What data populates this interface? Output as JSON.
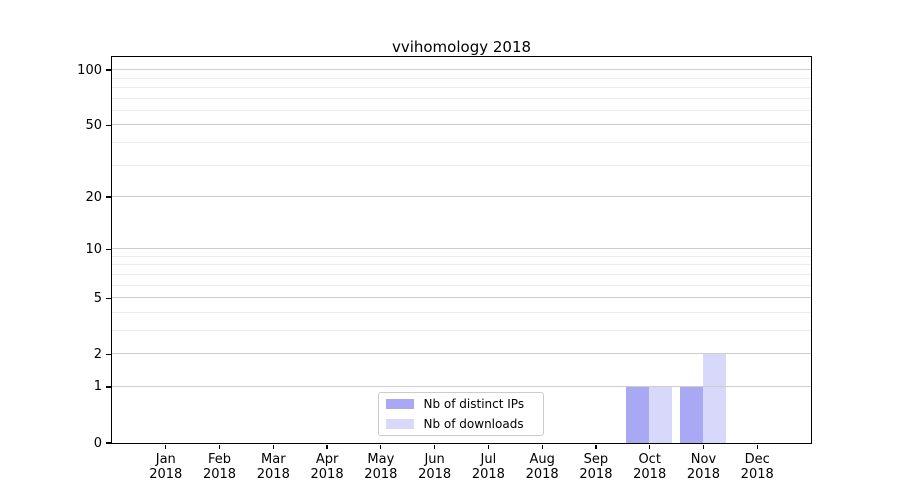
{
  "chart_data": {
    "type": "bar",
    "title": "vvihomology 2018",
    "x_tick_months": [
      "Jan",
      "Feb",
      "Mar",
      "Apr",
      "May",
      "Jun",
      "Jul",
      "Aug",
      "Sep",
      "Oct",
      "Nov",
      "Dec"
    ],
    "x_tick_year": "2018",
    "series": [
      {
        "name": "Nb of distinct IPs",
        "color": "#a8a8f5",
        "values": [
          0,
          0,
          0,
          0,
          0,
          0,
          0,
          0,
          0,
          1,
          1,
          0
        ]
      },
      {
        "name": "Nb of downloads",
        "color": "#d8d8fa",
        "values": [
          0,
          0,
          0,
          0,
          0,
          0,
          0,
          0,
          0,
          1,
          2,
          0
        ]
      }
    ],
    "y_axis": {
      "scale": "log1p",
      "major_ticks": [
        0,
        1,
        2,
        5,
        10,
        20,
        50,
        100
      ],
      "minor_gridlines": [
        3,
        4,
        6,
        7,
        8,
        9,
        30,
        40,
        60,
        70,
        80,
        90
      ],
      "range": [
        0,
        117
      ]
    },
    "grid": {
      "major_color": "#cdcdcd",
      "minor_color": "#ececec"
    },
    "legend": {
      "position": "bottom-center",
      "entries": [
        "Nb of distinct IPs",
        "Nb of downloads"
      ]
    }
  }
}
